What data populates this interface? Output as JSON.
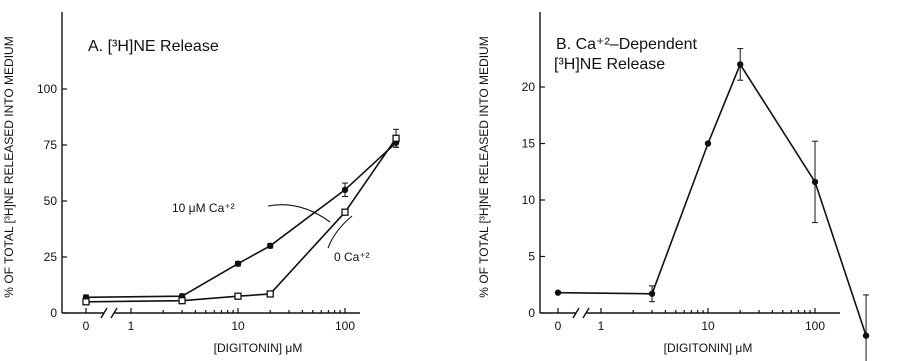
{
  "chart_data": [
    {
      "type": "line",
      "title": "A. [³H]NE Release",
      "xlabel": "[DIGITONIN] μM",
      "ylabel": "% OF TOTAL [³H]NE RELEASED INTO MEDIUM",
      "x_scale": "log (broken axis after 0)",
      "x_ticks": [
        "0",
        "1",
        "10",
        "100"
      ],
      "y_ticks": [
        "0",
        "25",
        "50",
        "75",
        "100"
      ],
      "ylim": [
        0,
        125
      ],
      "series": [
        {
          "name": "10 μM Ca⁺²",
          "marker": "filled",
          "x": [
            0,
            3,
            10,
            20,
            100,
            300
          ],
          "y": [
            7,
            7.5,
            22,
            30,
            55,
            76
          ],
          "err": [
            1,
            1,
            1,
            1,
            3,
            2
          ]
        },
        {
          "name": "0 Ca⁺²",
          "marker": "open",
          "x": [
            0,
            3,
            10,
            20,
            100,
            300
          ],
          "y": [
            5,
            5.5,
            7.5,
            8.5,
            45,
            78
          ],
          "err": [
            0.5,
            0.5,
            0.5,
            0.5,
            1,
            4
          ]
        }
      ]
    },
    {
      "type": "line",
      "title": "B. Ca⁺²–Dependent [³H]NE Release",
      "xlabel": "[DIGITONIN] μM",
      "ylabel": "% OF TOTAL [³H]NE RELEASED INTO MEDIUM",
      "x_scale": "log (broken axis after 0)",
      "x_ticks": [
        "0",
        "1",
        "10",
        "100"
      ],
      "y_ticks": [
        "0",
        "5",
        "10",
        "15",
        "20"
      ],
      "ylim": [
        0,
        25
      ],
      "series": [
        {
          "marker": "filled",
          "x": [
            0,
            3,
            10,
            20,
            100,
            300
          ],
          "y": [
            1.8,
            1.7,
            15,
            22,
            11.6,
            -2
          ],
          "err": [
            0.6,
            0.7,
            0.6,
            1.4,
            3.6,
            3.6
          ]
        }
      ]
    }
  ]
}
